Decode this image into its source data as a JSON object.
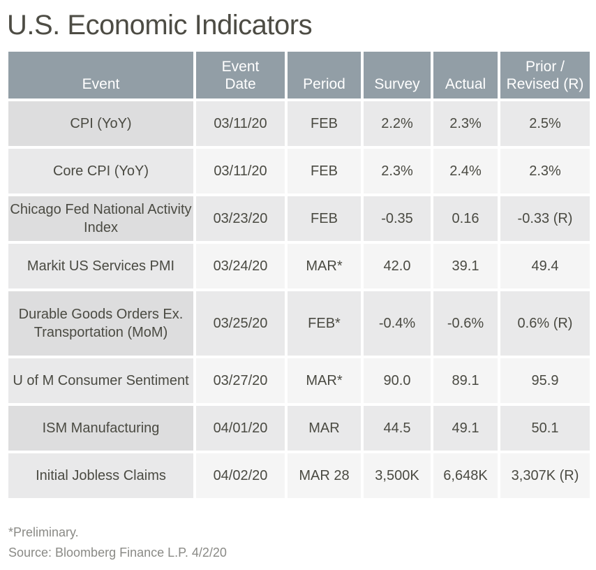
{
  "title": "U.S. Economic Indicators",
  "table": {
    "headers": {
      "event": "Event",
      "event_date_line1": "Event",
      "event_date_line2": "Date",
      "period": "Period",
      "survey": "Survey",
      "actual": "Actual",
      "prior_line1": "Prior /",
      "prior_line2": "Revised (R)"
    },
    "rows": [
      {
        "event": "CPI (YoY)",
        "date": "03/11/20",
        "period": "FEB",
        "survey": "2.2%",
        "actual": "2.3%",
        "prior": "2.5%"
      },
      {
        "event": "Core CPI (YoY)",
        "date": "03/11/20",
        "period": "FEB",
        "survey": "2.3%",
        "actual": "2.4%",
        "prior": "2.3%"
      },
      {
        "event": "Chicago Fed National Activity Index",
        "date": "03/23/20",
        "period": "FEB",
        "survey": "-0.35",
        "actual": "0.16",
        "prior": "-0.33 (R)"
      },
      {
        "event": "Markit US Services PMI",
        "date": "03/24/20",
        "period": "MAR*",
        "survey": "42.0",
        "actual": "39.1",
        "prior": "49.4"
      },
      {
        "event": "Durable Goods Orders Ex. Transportation (MoM)",
        "date": "03/25/20",
        "period": "FEB*",
        "survey": "-0.4%",
        "actual": "-0.6%",
        "prior": "0.6% (R)"
      },
      {
        "event": "U of M Consumer Sentiment",
        "date": "03/27/20",
        "period": "MAR*",
        "survey": "90.0",
        "actual": "89.1",
        "prior": "95.9"
      },
      {
        "event": "ISM Manufacturing",
        "date": "04/01/20",
        "period": "MAR",
        "survey": "44.5",
        "actual": "49.1",
        "prior": "50.1"
      },
      {
        "event": "Initial Jobless Claims",
        "date": "04/02/20",
        "period": "MAR 28",
        "survey": "3,500K",
        "actual": "6,648K",
        "prior": "3,307K (R)"
      }
    ]
  },
  "footnotes": {
    "preliminary": "*Preliminary.",
    "source": "Source: Bloomberg Finance L.P. 4/2/20"
  },
  "colors": {
    "header_bg": "#929ea6",
    "header_text": "#ffffff",
    "title_text": "#4d4c44",
    "body_text": "#4a4a42",
    "footnote_text": "#8a8a86"
  }
}
